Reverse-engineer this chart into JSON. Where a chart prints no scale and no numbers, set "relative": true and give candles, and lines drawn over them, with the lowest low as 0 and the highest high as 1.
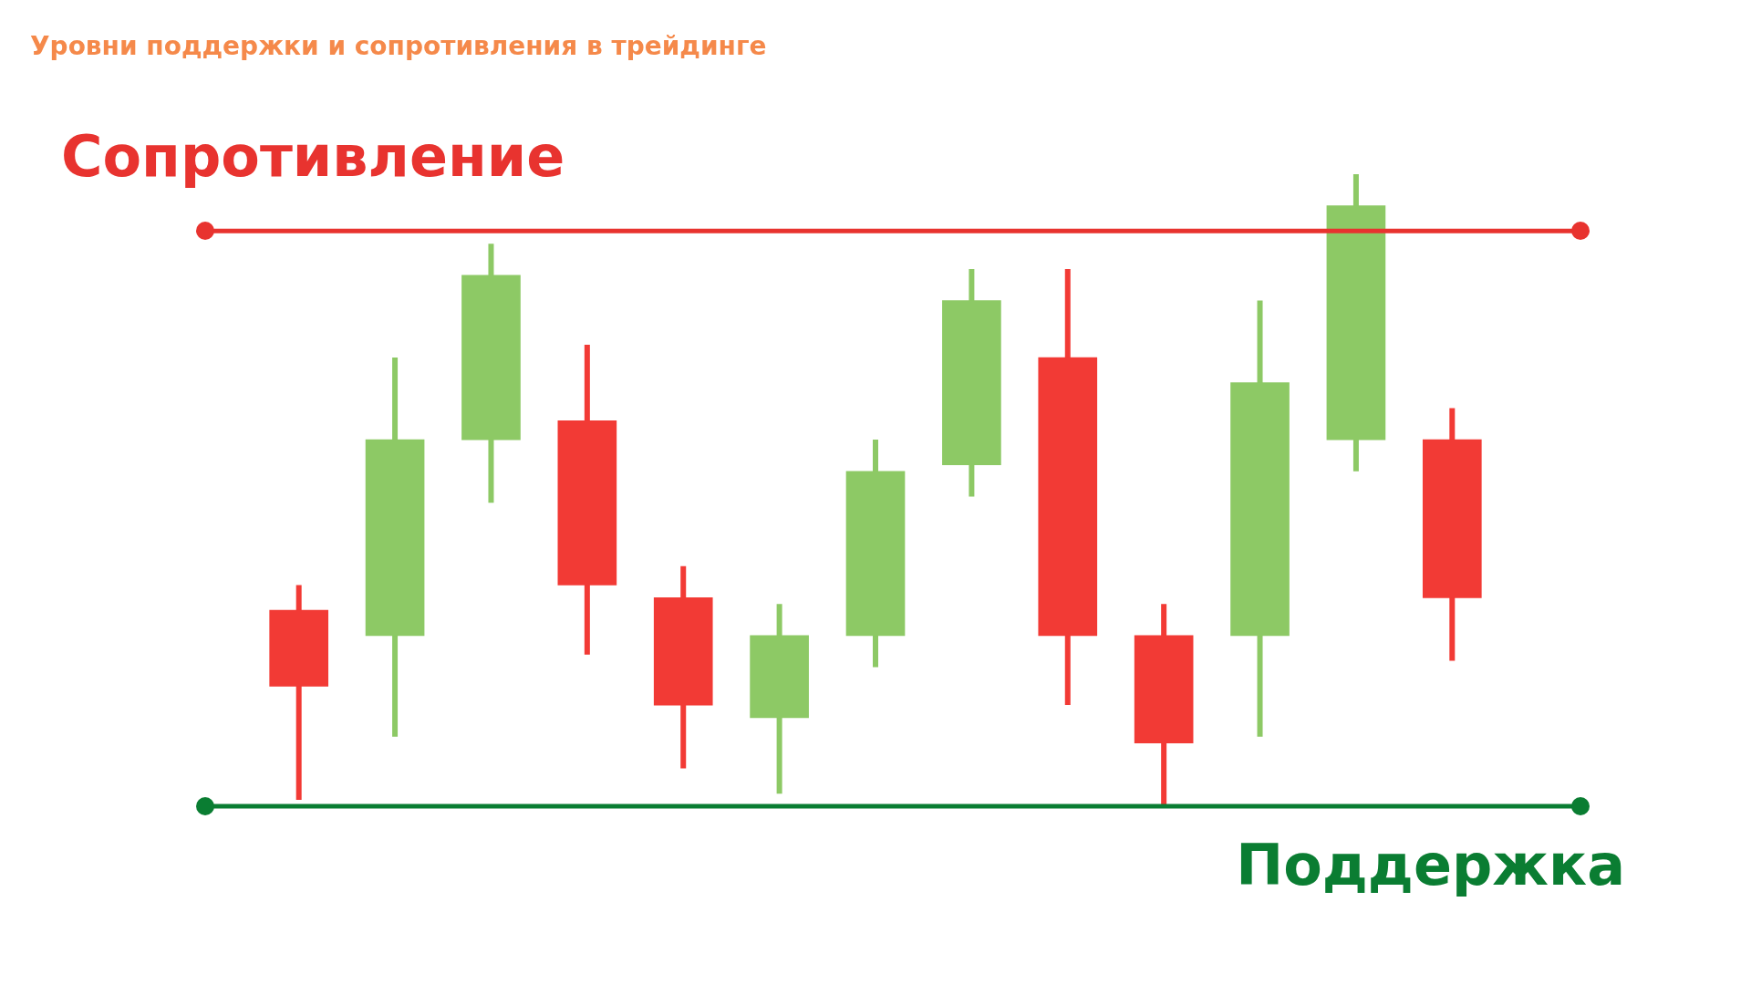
{
  "chart_data": {
    "type": "candlestick",
    "title": "Уровни поддержки и сопротивления в трейдинге",
    "relative": true,
    "categories": [
      null,
      null,
      null,
      null,
      null,
      null,
      null,
      null,
      null,
      null,
      null,
      null,
      null
    ],
    "ohlc": [
      [
        0.31,
        0.35,
        0.01,
        0.19
      ],
      [
        0.27,
        0.71,
        0.11,
        0.58
      ],
      [
        0.58,
        0.89,
        0.48,
        0.84
      ],
      [
        0.61,
        0.73,
        0.24,
        0.35
      ],
      [
        0.33,
        0.38,
        0.06,
        0.16
      ],
      [
        0.14,
        0.32,
        0.02,
        0.27
      ],
      [
        0.27,
        0.58,
        0.22,
        0.53
      ],
      [
        0.54,
        0.85,
        0.49,
        0.8
      ],
      [
        0.71,
        0.85,
        0.16,
        0.27
      ],
      [
        0.27,
        0.32,
        0.0,
        0.1
      ],
      [
        0.27,
        0.8,
        0.11,
        0.67
      ],
      [
        0.58,
        1.0,
        0.53,
        0.95
      ],
      [
        0.58,
        0.63,
        0.23,
        0.33
      ]
    ],
    "colors": [
      "#f23a35",
      "#8dc965",
      "#8dc965",
      "#f23a35",
      "#f23a35",
      "#8dc965",
      "#8dc965",
      "#8dc965",
      "#f23a35",
      "#f23a35",
      "#8dc965",
      "#8dc965",
      "#f23a35"
    ],
    "ref_lines": [
      {
        "axis": "y",
        "value": 0.91,
        "label": "Сопротивление",
        "color": "#e8332f"
      },
      {
        "axis": "y",
        "value": 0.0,
        "label": "Поддержка",
        "color": "#0a7d32"
      }
    ],
    "marker": "circle"
  }
}
